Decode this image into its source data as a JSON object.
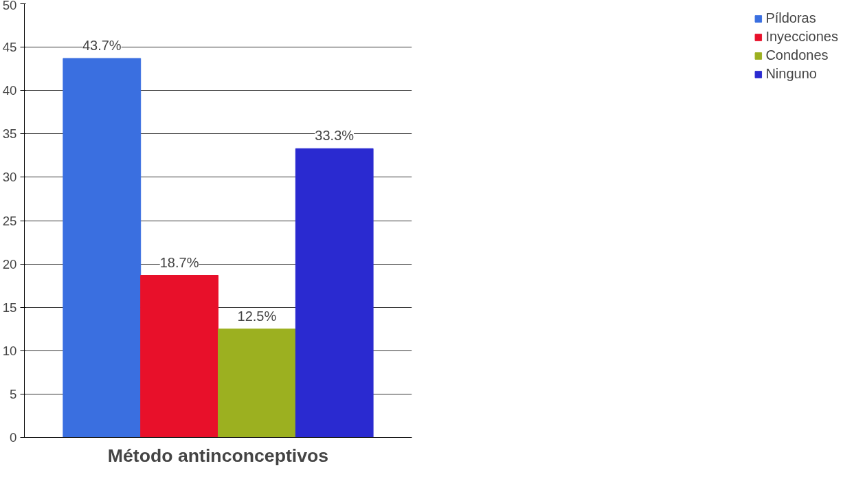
{
  "chart_data": {
    "type": "bar",
    "xlabel": "Método antinconceptivos",
    "categories": [
      null
    ],
    "series": [
      {
        "name": "Píldoras",
        "color": "#3a6fe0",
        "values": [
          43.7
        ],
        "value_labels": [
          "43.7%"
        ]
      },
      {
        "name": "Inyecciones",
        "color": "#e8102a",
        "values": [
          18.7
        ],
        "value_labels": [
          "18.7%"
        ]
      },
      {
        "name": "Condones",
        "color": "#9cb020",
        "values": [
          12.5
        ],
        "value_labels": [
          "12.5%"
        ]
      },
      {
        "name": "Ninguno",
        "color": "#2a2ad0",
        "values": [
          33.3
        ],
        "value_labels": [
          "33.3%"
        ]
      }
    ],
    "ylim": [
      0,
      50
    ],
    "yticks": [
      0,
      5,
      10,
      15,
      20,
      25,
      30,
      35,
      40,
      45,
      50
    ],
    "grid": "y",
    "legend": "right"
  }
}
